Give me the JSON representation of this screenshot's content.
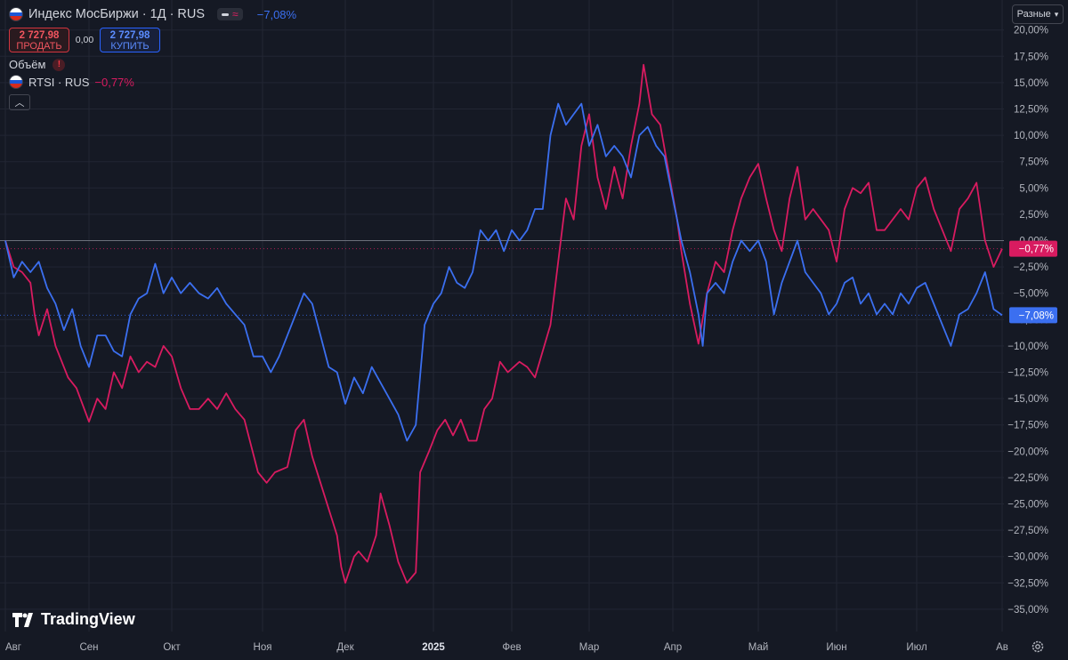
{
  "header": {
    "symbol_title": "Индекс МосБиржи · 1Д · RUS",
    "change": "−7,08%",
    "sell_price": "2 727,98",
    "sell_label": "ПРОДАТЬ",
    "spread": "0,00",
    "buy_price": "2 727,98",
    "buy_label": "КУПИТЬ",
    "volume_label": "Объём",
    "compare_symbol": "RTSI · RUS",
    "compare_change": "−0,77%"
  },
  "toolbar": {
    "scale_mode": "Разные"
  },
  "brand": {
    "logo_text": "TradingView"
  },
  "colors": {
    "background": "#151924",
    "imoex": "#3b6ff0",
    "rtsi": "#d81b60",
    "zero_line": "#6b6f7a",
    "grid": "#222633"
  },
  "icons": [
    "flag-russia-icon",
    "compare-mode-icon",
    "warning-icon",
    "chevron-up-icon",
    "chevron-down-icon",
    "gear-icon",
    "tradingview-logo-icon"
  ],
  "chart_data": {
    "type": "line",
    "y_axis": {
      "unit": "%",
      "min": -37.5,
      "max": 20,
      "ticks": [
        20,
        17.5,
        15,
        12.5,
        10,
        7.5,
        5,
        2.5,
        0,
        -2.5,
        -5,
        -7.5,
        -10,
        -12.5,
        -15,
        -17.5,
        -20,
        -22.5,
        -25,
        -27.5,
        -30,
        -32.5,
        -35
      ],
      "tick_labels": [
        "20,00%",
        "17,50%",
        "15,00%",
        "12,50%",
        "10,00%",
        "7,50%",
        "5,00%",
        "2,50%",
        "0,00%",
        "−2,50%",
        "−5,00%",
        "−7,50%",
        "−10,00%",
        "−12,50%",
        "−15,00%",
        "−17,50%",
        "−20,00%",
        "−22,50%",
        "−25,00%",
        "−27,50%",
        "−30,00%",
        "−32,50%",
        "−35,00%"
      ]
    },
    "x_axis": {
      "labels": [
        "Авг",
        "Сен",
        "Окт",
        "Ноя",
        "Дек",
        "2025",
        "Фев",
        "Мар",
        "Апр",
        "Май",
        "Июн",
        "Июл",
        "Ав"
      ],
      "label_t": [
        0,
        1,
        2,
        3,
        4,
        5,
        6,
        7,
        8,
        9,
        10,
        11,
        12
      ],
      "range": [
        0,
        12.15
      ]
    },
    "series": [
      {
        "name": "RTSI · RUS",
        "color": "#d81b60",
        "last_label": "−0,77%",
        "points": [
          [
            0,
            0
          ],
          [
            0.1,
            -2.5
          ],
          [
            0.2,
            -3
          ],
          [
            0.3,
            -4
          ],
          [
            0.35,
            -7
          ],
          [
            0.4,
            -9
          ],
          [
            0.5,
            -6.5
          ],
          [
            0.6,
            -10
          ],
          [
            0.75,
            -13
          ],
          [
            0.85,
            -14
          ],
          [
            1.0,
            -17.2
          ],
          [
            1.1,
            -15
          ],
          [
            1.2,
            -16
          ],
          [
            1.3,
            -12.5
          ],
          [
            1.4,
            -14
          ],
          [
            1.5,
            -11
          ],
          [
            1.6,
            -12.5
          ],
          [
            1.7,
            -11.5
          ],
          [
            1.8,
            -12
          ],
          [
            1.9,
            -10
          ],
          [
            2.0,
            -11
          ],
          [
            2.1,
            -14
          ],
          [
            2.2,
            -16
          ],
          [
            2.3,
            -16
          ],
          [
            2.4,
            -15
          ],
          [
            2.5,
            -16
          ],
          [
            2.6,
            -14.5
          ],
          [
            2.7,
            -16
          ],
          [
            2.8,
            -17
          ],
          [
            2.95,
            -22
          ],
          [
            3.05,
            -23
          ],
          [
            3.15,
            -22
          ],
          [
            3.3,
            -21.5
          ],
          [
            3.4,
            -18
          ],
          [
            3.5,
            -17
          ],
          [
            3.6,
            -20.5
          ],
          [
            3.7,
            -23
          ],
          [
            3.8,
            -25.5
          ],
          [
            3.9,
            -28
          ],
          [
            3.95,
            -31
          ],
          [
            4.0,
            -32.5
          ],
          [
            4.1,
            -30
          ],
          [
            4.15,
            -29.5
          ],
          [
            4.25,
            -30.5
          ],
          [
            4.35,
            -28
          ],
          [
            4.4,
            -24
          ],
          [
            4.5,
            -27
          ],
          [
            4.6,
            -30.5
          ],
          [
            4.7,
            -32.5
          ],
          [
            4.8,
            -31.5
          ],
          [
            4.85,
            -22
          ],
          [
            4.95,
            -20
          ],
          [
            5.05,
            -18
          ],
          [
            5.15,
            -17
          ],
          [
            5.25,
            -18.5
          ],
          [
            5.35,
            -17
          ],
          [
            5.45,
            -19
          ],
          [
            5.55,
            -19
          ],
          [
            5.65,
            -16
          ],
          [
            5.75,
            -15
          ],
          [
            5.85,
            -11.5
          ],
          [
            5.95,
            -12.5
          ],
          [
            6.1,
            -11.5
          ],
          [
            6.2,
            -12
          ],
          [
            6.3,
            -13
          ],
          [
            6.4,
            -10.5
          ],
          [
            6.5,
            -8
          ],
          [
            6.6,
            -2
          ],
          [
            6.7,
            4
          ],
          [
            6.8,
            2
          ],
          [
            6.9,
            9
          ],
          [
            7.0,
            12
          ],
          [
            7.1,
            6
          ],
          [
            7.2,
            3
          ],
          [
            7.3,
            7
          ],
          [
            7.4,
            4
          ],
          [
            7.5,
            9
          ],
          [
            7.6,
            13
          ],
          [
            7.65,
            16.7
          ],
          [
            7.75,
            12
          ],
          [
            7.85,
            11
          ],
          [
            7.95,
            6.5
          ],
          [
            8.05,
            2
          ],
          [
            8.1,
            -1
          ],
          [
            8.2,
            -6
          ],
          [
            8.3,
            -9.8
          ],
          [
            8.4,
            -5
          ],
          [
            8.5,
            -2
          ],
          [
            8.6,
            -3
          ],
          [
            8.7,
            1
          ],
          [
            8.8,
            4
          ],
          [
            8.9,
            6
          ],
          [
            9.0,
            7.3
          ],
          [
            9.1,
            4
          ],
          [
            9.2,
            1
          ],
          [
            9.3,
            -1
          ],
          [
            9.4,
            4
          ],
          [
            9.5,
            7
          ],
          [
            9.6,
            2
          ],
          [
            9.7,
            3
          ],
          [
            9.8,
            2
          ],
          [
            9.9,
            1
          ],
          [
            10.0,
            -2
          ],
          [
            10.1,
            3
          ],
          [
            10.2,
            5
          ],
          [
            10.3,
            4.5
          ],
          [
            10.4,
            5.5
          ],
          [
            10.5,
            1
          ],
          [
            10.6,
            1
          ],
          [
            10.7,
            2
          ],
          [
            10.8,
            3
          ],
          [
            10.9,
            2
          ],
          [
            11.0,
            5
          ],
          [
            11.1,
            6
          ],
          [
            11.2,
            3
          ],
          [
            11.3,
            1
          ],
          [
            11.4,
            -1
          ],
          [
            11.5,
            3
          ],
          [
            11.6,
            4
          ],
          [
            11.7,
            5.5
          ],
          [
            11.8,
            0
          ],
          [
            11.9,
            -2.5
          ],
          [
            12.0,
            -0.77
          ]
        ]
      },
      {
        "name": "Индекс МосБиржи · 1Д · RUS",
        "color": "#3b6ff0",
        "last_label": "−7,08%",
        "points": [
          [
            0,
            0
          ],
          [
            0.1,
            -3.5
          ],
          [
            0.2,
            -2
          ],
          [
            0.3,
            -3
          ],
          [
            0.4,
            -2
          ],
          [
            0.5,
            -4.5
          ],
          [
            0.6,
            -6
          ],
          [
            0.7,
            -8.5
          ],
          [
            0.8,
            -6.5
          ],
          [
            0.9,
            -10
          ],
          [
            1.0,
            -12
          ],
          [
            1.1,
            -9
          ],
          [
            1.2,
            -9
          ],
          [
            1.3,
            -10.5
          ],
          [
            1.4,
            -11
          ],
          [
            1.5,
            -7
          ],
          [
            1.6,
            -5.5
          ],
          [
            1.7,
            -5
          ],
          [
            1.8,
            -2.2
          ],
          [
            1.9,
            -5
          ],
          [
            2.0,
            -3.5
          ],
          [
            2.1,
            -5
          ],
          [
            2.2,
            -4
          ],
          [
            2.3,
            -5
          ],
          [
            2.4,
            -5.5
          ],
          [
            2.5,
            -4.5
          ],
          [
            2.6,
            -6
          ],
          [
            2.7,
            -7
          ],
          [
            2.8,
            -8
          ],
          [
            2.9,
            -11
          ],
          [
            3.0,
            -11
          ],
          [
            3.1,
            -12.5
          ],
          [
            3.2,
            -11
          ],
          [
            3.3,
            -9
          ],
          [
            3.4,
            -7
          ],
          [
            3.5,
            -5
          ],
          [
            3.6,
            -6
          ],
          [
            3.7,
            -9
          ],
          [
            3.8,
            -12
          ],
          [
            3.9,
            -12.5
          ],
          [
            4.0,
            -15.5
          ],
          [
            4.1,
            -13
          ],
          [
            4.2,
            -14.5
          ],
          [
            4.3,
            -12
          ],
          [
            4.4,
            -13.5
          ],
          [
            4.5,
            -15
          ],
          [
            4.6,
            -16.5
          ],
          [
            4.7,
            -19
          ],
          [
            4.8,
            -17.5
          ],
          [
            4.9,
            -8
          ],
          [
            5.0,
            -6
          ],
          [
            5.1,
            -5
          ],
          [
            5.2,
            -2.5
          ],
          [
            5.3,
            -4
          ],
          [
            5.4,
            -4.5
          ],
          [
            5.5,
            -3
          ],
          [
            5.6,
            1
          ],
          [
            5.7,
            0
          ],
          [
            5.8,
            1
          ],
          [
            5.9,
            -1
          ],
          [
            6.0,
            1
          ],
          [
            6.1,
            0
          ],
          [
            6.2,
            1
          ],
          [
            6.3,
            3
          ],
          [
            6.4,
            3
          ],
          [
            6.5,
            10
          ],
          [
            6.6,
            13
          ],
          [
            6.7,
            11
          ],
          [
            6.8,
            12
          ],
          [
            6.9,
            13
          ],
          [
            7.0,
            9
          ],
          [
            7.1,
            11
          ],
          [
            7.2,
            8
          ],
          [
            7.3,
            9
          ],
          [
            7.4,
            8
          ],
          [
            7.5,
            6
          ],
          [
            7.6,
            10
          ],
          [
            7.7,
            10.8
          ],
          [
            7.8,
            9
          ],
          [
            7.9,
            8
          ],
          [
            8.0,
            4
          ],
          [
            8.1,
            0
          ],
          [
            8.2,
            -3
          ],
          [
            8.3,
            -7
          ],
          [
            8.35,
            -10
          ],
          [
            8.4,
            -5
          ],
          [
            8.5,
            -4
          ],
          [
            8.6,
            -5
          ],
          [
            8.7,
            -2
          ],
          [
            8.8,
            0
          ],
          [
            8.9,
            -1
          ],
          [
            9.0,
            0
          ],
          [
            9.1,
            -2
          ],
          [
            9.2,
            -7
          ],
          [
            9.3,
            -4
          ],
          [
            9.4,
            -2
          ],
          [
            9.5,
            0
          ],
          [
            9.6,
            -3
          ],
          [
            9.7,
            -4
          ],
          [
            9.8,
            -5
          ],
          [
            9.9,
            -7
          ],
          [
            10.0,
            -6
          ],
          [
            10.1,
            -4
          ],
          [
            10.2,
            -3.5
          ],
          [
            10.3,
            -6
          ],
          [
            10.4,
            -5
          ],
          [
            10.5,
            -7
          ],
          [
            10.6,
            -6
          ],
          [
            10.7,
            -7
          ],
          [
            10.8,
            -5
          ],
          [
            10.9,
            -6
          ],
          [
            11.0,
            -4.5
          ],
          [
            11.1,
            -4
          ],
          [
            11.2,
            -6
          ],
          [
            11.3,
            -8
          ],
          [
            11.4,
            -10
          ],
          [
            11.5,
            -7
          ],
          [
            11.6,
            -6.5
          ],
          [
            11.7,
            -5
          ],
          [
            11.8,
            -3
          ],
          [
            11.9,
            -6.5
          ],
          [
            12.0,
            -7.08
          ]
        ]
      }
    ]
  }
}
